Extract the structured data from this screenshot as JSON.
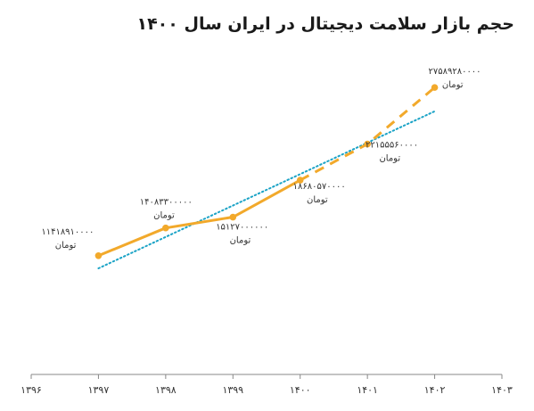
{
  "chart_data": {
    "type": "line",
    "title": "حجم بازار سلامت دیجیتال در ایران سال ۱۴۰۰",
    "x_ticks": [
      "۱۳۹۶",
      "۱۳۹۷",
      "۱۳۹۸",
      "۱۳۹۹",
      "۱۴۰۰",
      "۱۴۰۱",
      "۱۴۰۲",
      "۱۴۰۳"
    ],
    "xlim": [
      1396,
      1403
    ],
    "ylim": [
      0,
      30000000000
    ],
    "grid": false,
    "points": [
      {
        "x": 1397,
        "y": 11418910000,
        "label": "۱۱۴۱۸۹۱۰۰۰۰",
        "unit": "تومان"
      },
      {
        "x": 1398,
        "y": 14083300000,
        "label": "۱۴۰۸۳۳۰۰۰۰۰",
        "unit": "تومان"
      },
      {
        "x": 1399,
        "y": 15127000000,
        "label": "۱۵۱۲۷۰۰۰۰۰۰",
        "unit": "تومان"
      },
      {
        "x": 1400,
        "y": 18680570000,
        "label": "۱۸۶۸۰۵۷۰۰۰۰",
        "unit": "تومان"
      },
      {
        "x": 1401,
        "y": 22155560000,
        "label": "۲۲۱۵۵۵۶۰۰۰۰",
        "unit": "تومان"
      },
      {
        "x": 1402,
        "y": 27589280000,
        "label": "۲۷۵۸۹۲۸۰۰۰۰",
        "unit": "تومان"
      }
    ],
    "series": [
      {
        "style": "solid",
        "x": [
          1397,
          1398,
          1399,
          1400
        ]
      },
      {
        "style": "dashed",
        "x": [
          1400,
          1401,
          1402
        ]
      }
    ],
    "trendline": {
      "style": "dotted",
      "x": [
        1397,
        1402
      ],
      "y": [
        10200000000,
        25300000000
      ]
    },
    "colors": {
      "series": "#f2a92b",
      "trendline": "#1ba3c6",
      "axis": "#888888",
      "text": "#333333"
    }
  }
}
